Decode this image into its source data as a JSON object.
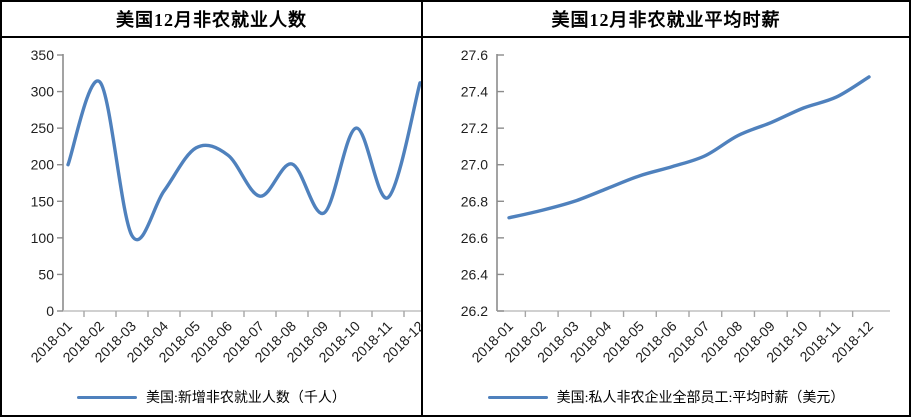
{
  "colors": {
    "line": "#4f81bd",
    "frame_border": "#000000",
    "y_axis": "#8c8c8c",
    "x_axis": "#c0c0c0",
    "x_tick": "#a6a6a6",
    "tick_label": "#1f1f1f",
    "title": "#000000"
  },
  "chart_data": [
    {
      "type": "line",
      "title": "美国12月非农就业人数",
      "categories": [
        "2018-01",
        "2018-02",
        "2018-03",
        "2018-04",
        "2018-05",
        "2018-06",
        "2018-07",
        "2018-08",
        "2018-09",
        "2018-10",
        "2018-11",
        "2018-12"
      ],
      "series": [
        {
          "name": "美国:新增非农就业人数（千人）",
          "values": [
            200,
            313,
            103,
            164,
            223,
            213,
            157,
            201,
            134,
            250,
            155,
            312
          ]
        }
      ],
      "ylim": [
        0,
        350
      ],
      "ytick_step": 50,
      "y_tick_labels": [
        "350",
        "300",
        "250",
        "200",
        "150",
        "100",
        "50",
        "0"
      ],
      "xlabel": "",
      "ylabel": "",
      "grid": false,
      "smooth": true,
      "legend_position": "bottom"
    },
    {
      "type": "line",
      "title": "美国12月非农就业平均时薪",
      "categories": [
        "2018-01",
        "2018-02",
        "2018-03",
        "2018-04",
        "2018-05",
        "2018-06",
        "2018-07",
        "2018-08",
        "2018-09",
        "2018-10",
        "2018-11",
        "2018-12"
      ],
      "series": [
        {
          "name": "美国:私人非农企业全部员工:平均时薪（美元）",
          "values": [
            26.71,
            26.75,
            26.8,
            26.87,
            26.94,
            26.99,
            27.05,
            27.16,
            27.23,
            27.31,
            27.37,
            27.48
          ]
        }
      ],
      "ylim": [
        26.2,
        27.6
      ],
      "ytick_step": 0.2,
      "y_tick_labels": [
        "27.6",
        "27.4",
        "27.2",
        "27.0",
        "26.8",
        "26.6",
        "26.4",
        "26.2"
      ],
      "xlabel": "",
      "ylabel": "",
      "grid": false,
      "smooth": true,
      "legend_position": "bottom"
    }
  ]
}
